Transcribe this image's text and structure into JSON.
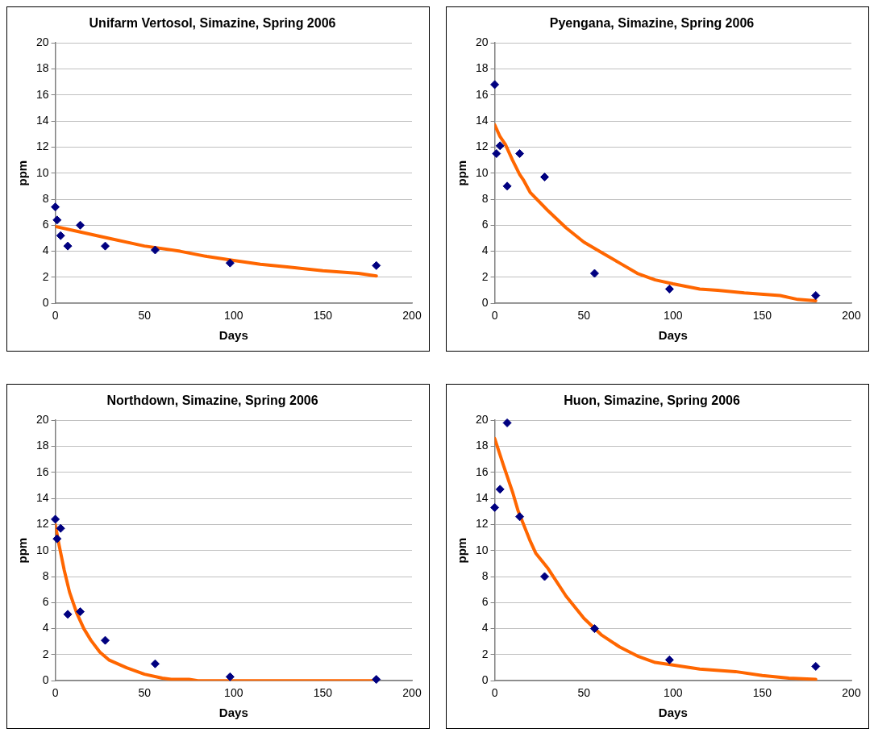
{
  "chart_data": [
    {
      "type": "scatter",
      "title": "Unifarm Vertosol, Simazine, Spring 2006",
      "xlabel": "Days",
      "ylabel": "ppm",
      "xlim": [
        0,
        200
      ],
      "ylim": [
        0,
        20
      ],
      "xticks": [
        0,
        50,
        100,
        150,
        200
      ],
      "yticks": [
        0,
        2,
        4,
        6,
        8,
        10,
        12,
        14,
        16,
        18,
        20
      ],
      "grid": "y",
      "series": [
        {
          "type": "scatter",
          "color": "#000080",
          "marker": "diamond",
          "x": [
            0,
            1,
            3,
            7,
            14,
            28,
            56,
            98,
            180
          ],
          "values": [
            7.4,
            6.4,
            5.2,
            4.4,
            6.0,
            4.4,
            4.1,
            3.1,
            2.9
          ]
        },
        {
          "type": "line",
          "color": "#ff6600",
          "marker": "none",
          "x": [
            0,
            10,
            30,
            50,
            70,
            85,
            100,
            115,
            130,
            150,
            170,
            180
          ],
          "values": [
            5.9,
            5.6,
            5.0,
            4.4,
            4.0,
            3.6,
            3.3,
            3.0,
            2.8,
            2.5,
            2.3,
            2.1
          ]
        }
      ]
    },
    {
      "type": "scatter",
      "title": "Pyengana, Simazine, Spring 2006",
      "xlabel": "Days",
      "ylabel": "ppm",
      "xlim": [
        0,
        200
      ],
      "ylim": [
        0,
        20
      ],
      "xticks": [
        0,
        50,
        100,
        150,
        200
      ],
      "yticks": [
        0,
        2,
        4,
        6,
        8,
        10,
        12,
        14,
        16,
        18,
        20
      ],
      "grid": "y",
      "series": [
        {
          "type": "scatter",
          "color": "#000080",
          "marker": "diamond",
          "x": [
            0,
            1,
            3,
            7,
            14,
            28,
            56,
            98,
            180
          ],
          "values": [
            16.8,
            11.5,
            12.1,
            9.0,
            11.5,
            9.7,
            2.3,
            1.1,
            0.6
          ]
        },
        {
          "type": "line",
          "color": "#ff6600",
          "marker": "none",
          "x": [
            0,
            3,
            6,
            10,
            14,
            16,
            20,
            30,
            40,
            50,
            60,
            70,
            80,
            90,
            100,
            115,
            125,
            140,
            160,
            170,
            180
          ],
          "values": [
            13.7,
            12.8,
            12.2,
            11.0,
            9.9,
            9.5,
            8.5,
            7.1,
            5.8,
            4.7,
            3.9,
            3.1,
            2.3,
            1.8,
            1.5,
            1.1,
            1.0,
            0.8,
            0.6,
            0.3,
            0.2
          ]
        }
      ]
    },
    {
      "type": "scatter",
      "title": "Northdown, Simazine, Spring 2006",
      "xlabel": "Days",
      "ylabel": "ppm",
      "xlim": [
        0,
        200
      ],
      "ylim": [
        0,
        20
      ],
      "xticks": [
        0,
        50,
        100,
        150,
        200
      ],
      "yticks": [
        0,
        2,
        4,
        6,
        8,
        10,
        12,
        14,
        16,
        18,
        20
      ],
      "grid": "y",
      "series": [
        {
          "type": "scatter",
          "color": "#000080",
          "marker": "diamond",
          "x": [
            0,
            1,
            3,
            7,
            14,
            28,
            56,
            98,
            180
          ],
          "values": [
            12.4,
            10.9,
            11.7,
            5.1,
            5.3,
            3.1,
            1.3,
            0.3,
            0.1
          ]
        },
        {
          "type": "line",
          "color": "#ff6600",
          "marker": "none",
          "x": [
            0,
            2,
            5,
            8,
            12,
            16,
            20,
            25,
            30,
            40,
            50,
            60,
            65,
            75,
            80,
            180
          ],
          "values": [
            12.0,
            10.5,
            8.5,
            6.8,
            5.2,
            4.0,
            3.1,
            2.2,
            1.6,
            1.0,
            0.5,
            0.2,
            0.1,
            0.1,
            0,
            0
          ]
        }
      ]
    },
    {
      "type": "scatter",
      "title": "Huon, Simazine, Spring 2006",
      "xlabel": "Days",
      "ylabel": "ppm",
      "xlim": [
        0,
        200
      ],
      "ylim": [
        0,
        20
      ],
      "xticks": [
        0,
        50,
        100,
        150,
        200
      ],
      "yticks": [
        0,
        2,
        4,
        6,
        8,
        10,
        12,
        14,
        16,
        18,
        20
      ],
      "grid": "y",
      "series": [
        {
          "type": "scatter",
          "color": "#000080",
          "marker": "diamond",
          "x": [
            0,
            3,
            7,
            14,
            28,
            56,
            98,
            180
          ],
          "values": [
            13.3,
            14.7,
            19.8,
            12.6,
            8.0,
            4.0,
            1.6,
            1.1
          ]
        },
        {
          "type": "line",
          "color": "#ff6600",
          "marker": "none",
          "x": [
            0,
            5,
            10,
            13,
            20,
            23,
            30,
            40,
            50,
            60,
            70,
            80,
            90,
            100,
            115,
            135,
            150,
            165,
            180
          ],
          "values": [
            18.6,
            16.5,
            14.5,
            13.1,
            10.7,
            9.8,
            8.6,
            6.5,
            4.8,
            3.5,
            2.6,
            1.9,
            1.4,
            1.2,
            0.9,
            0.7,
            0.4,
            0.2,
            0.1
          ]
        }
      ]
    }
  ]
}
